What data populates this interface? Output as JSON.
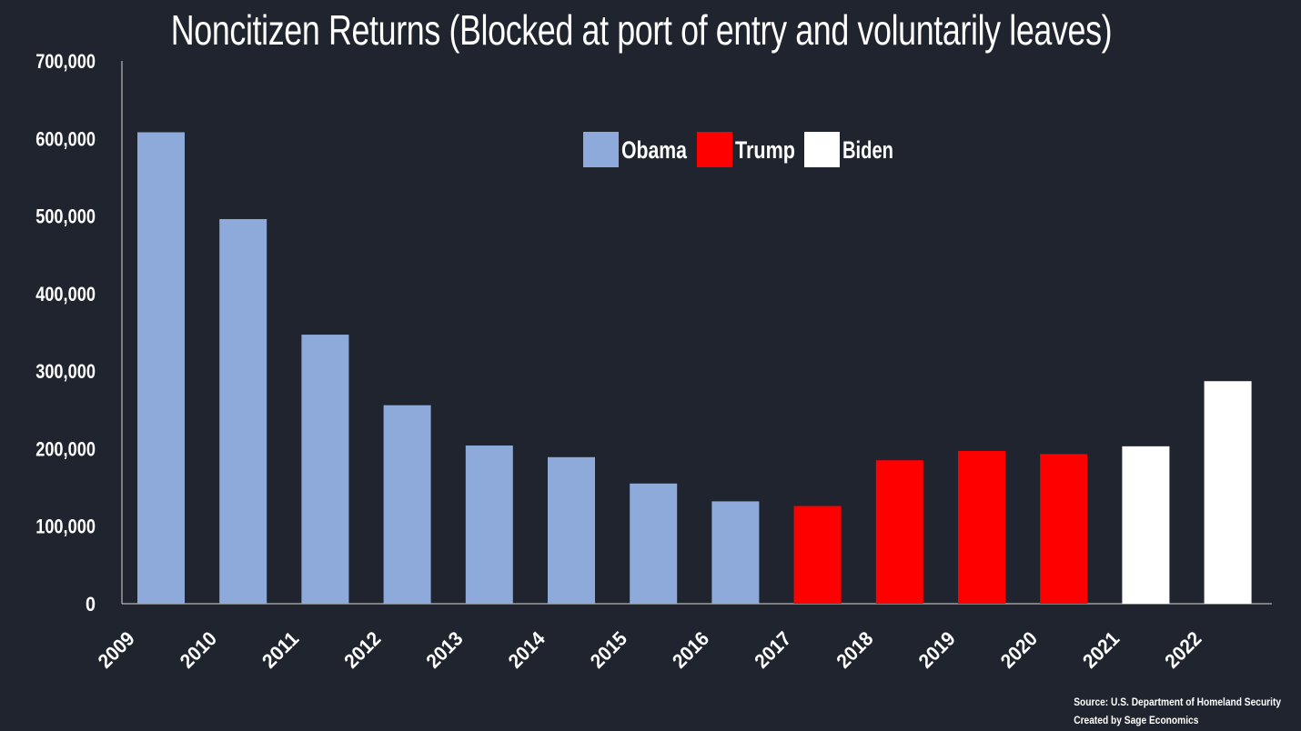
{
  "chart_data": {
    "type": "bar",
    "title": "Noncitizen Returns (Blocked at port of entry and voluntarily leaves)",
    "xlabel": "",
    "ylabel": "",
    "categories": [
      "2009",
      "2010",
      "2011",
      "2012",
      "2013",
      "2014",
      "2015",
      "2016",
      "2017",
      "2018",
      "2019",
      "2020",
      "2021",
      "2022"
    ],
    "values": [
      608000,
      496000,
      347000,
      256000,
      204000,
      189000,
      155000,
      132000,
      126000,
      185000,
      197000,
      193000,
      203000,
      287000
    ],
    "bar_groups": [
      "Obama",
      "Obama",
      "Obama",
      "Obama",
      "Obama",
      "Obama",
      "Obama",
      "Obama",
      "Trump",
      "Trump",
      "Trump",
      "Trump",
      "Biden",
      "Biden"
    ],
    "ylim": [
      0,
      700000
    ],
    "yticks": [
      "0",
      "100,000",
      "200,000",
      "300,000",
      "400,000",
      "500,000",
      "600,000",
      "700,000"
    ],
    "grid": false,
    "legend": {
      "placement": "top-center",
      "entries": [
        {
          "name": "Obama",
          "color": "#8eaadb"
        },
        {
          "name": "Trump",
          "color": "#ff0000"
        },
        {
          "name": "Biden",
          "color": "#ffffff"
        }
      ]
    }
  },
  "footer": {
    "source": "Source: U.S. Department of Homeland Security",
    "credit": "Created by Sage Economics"
  }
}
